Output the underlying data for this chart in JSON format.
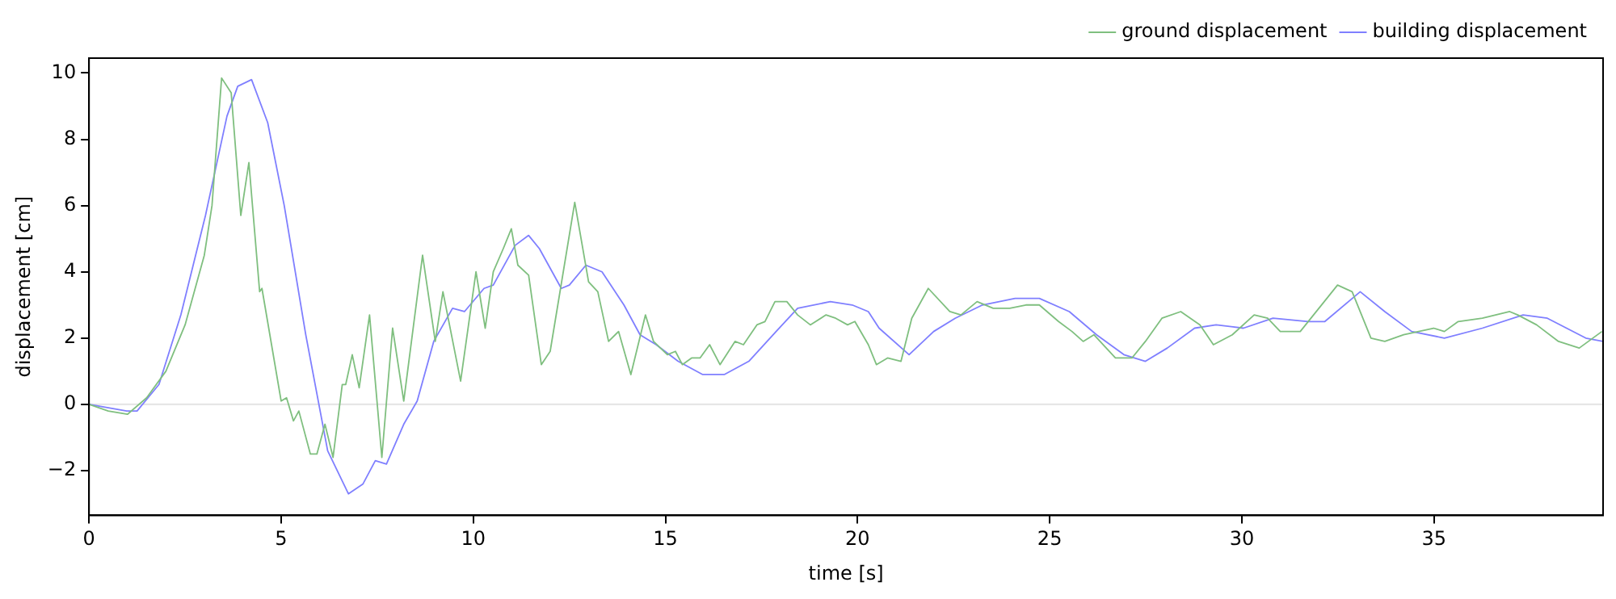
{
  "chart_data": {
    "type": "line",
    "xlabel": "time [s]",
    "ylabel": "displacement [cm]",
    "xlim": [
      0,
      39.4
    ],
    "ylim": [
      -3.35,
      10.45
    ],
    "xticks": [
      0,
      5,
      10,
      15,
      20,
      25,
      30,
      35
    ],
    "yticks": [
      {
        "value": -2,
        "label": "−2"
      },
      0,
      2,
      4,
      6,
      8,
      10
    ],
    "grid": false,
    "legend": "top right",
    "ref_lines": [
      {
        "axis": "y",
        "value": 0,
        "color": "#e6e6e6"
      }
    ],
    "series": [
      {
        "name": "ground displacement",
        "color": "#7fbf7f",
        "x": [
          0,
          0.5,
          1.0,
          1.5,
          2.0,
          2.5,
          3.0,
          3.2,
          3.45,
          3.7,
          3.95,
          4.16,
          4.44,
          4.5,
          5.0,
          5.14,
          5.32,
          5.46,
          5.76,
          5.93,
          6.14,
          6.35,
          6.59,
          6.68,
          6.85,
          7.03,
          7.3,
          7.62,
          7.9,
          8.19,
          8.68,
          9.01,
          9.21,
          9.67,
          10.07,
          10.31,
          10.52,
          10.78,
          10.99,
          11.16,
          11.44,
          11.77,
          12.0,
          12.64,
          13.0,
          13.24,
          13.52,
          13.78,
          14.1,
          14.48,
          14.69,
          15.05,
          15.26,
          15.44,
          15.68,
          15.9,
          16.15,
          16.42,
          16.81,
          17.03,
          17.38,
          17.59,
          17.85,
          18.16,
          18.44,
          18.77,
          19.18,
          19.43,
          19.74,
          19.93,
          20.28,
          20.49,
          20.78,
          21.13,
          21.41,
          21.84,
          22.4,
          22.69,
          23.11,
          23.53,
          23.96,
          24.38,
          24.73,
          25.23,
          25.58,
          25.87,
          26.15,
          26.71,
          27.14,
          27.49,
          27.92,
          28.41,
          28.91,
          29.26,
          29.75,
          30.32,
          30.67,
          31.0,
          31.52,
          32.49,
          32.87,
          33.36,
          33.72,
          34.21,
          34.99,
          35.27,
          35.63,
          36.26,
          36.97,
          37.18,
          37.67,
          38.24,
          38.78,
          39.37
        ],
        "values": [
          0,
          -0.2,
          -0.3,
          0.2,
          1.0,
          2.4,
          4.5,
          6.0,
          9.85,
          9.4,
          5.7,
          7.3,
          3.4,
          3.5,
          0.1,
          0.2,
          -0.5,
          -0.2,
          -1.5,
          -1.5,
          -0.6,
          -1.6,
          0.6,
          0.6,
          1.5,
          0.5,
          2.7,
          -1.6,
          2.3,
          0.1,
          4.5,
          1.9,
          3.4,
          0.7,
          4.0,
          2.3,
          4.0,
          4.7,
          5.3,
          4.2,
          3.9,
          1.2,
          1.6,
          6.1,
          3.7,
          3.4,
          1.9,
          2.2,
          0.9,
          2.7,
          1.9,
          1.5,
          1.6,
          1.2,
          1.4,
          1.4,
          1.8,
          1.2,
          1.9,
          1.8,
          2.4,
          2.5,
          3.1,
          3.1,
          2.7,
          2.4,
          2.7,
          2.6,
          2.4,
          2.5,
          1.8,
          1.2,
          1.4,
          1.3,
          2.6,
          3.5,
          2.8,
          2.7,
          3.1,
          2.9,
          2.9,
          3.0,
          3.0,
          2.5,
          2.2,
          1.9,
          2.1,
          1.4,
          1.4,
          1.9,
          2.6,
          2.8,
          2.4,
          1.8,
          2.1,
          2.7,
          2.6,
          2.2,
          2.2,
          3.6,
          3.4,
          2.0,
          1.9,
          2.1,
          2.3,
          2.2,
          2.5,
          2.6,
          2.8,
          2.7,
          2.4,
          1.9,
          1.7,
          2.2
        ]
      },
      {
        "name": "building displacement",
        "color": "#7f7fff",
        "x": [
          0,
          0.98,
          1.25,
          1.82,
          2.39,
          3.03,
          3.59,
          3.87,
          4.23,
          4.65,
          5.08,
          5.64,
          6.21,
          6.75,
          7.13,
          7.45,
          7.74,
          8.19,
          8.54,
          8.97,
          9.46,
          9.77,
          10.28,
          10.52,
          11.09,
          11.44,
          11.72,
          12.29,
          12.5,
          12.93,
          13.35,
          13.92,
          14.34,
          14.76,
          15.33,
          15.97,
          16.53,
          17.17,
          17.88,
          18.44,
          19.29,
          19.86,
          20.28,
          20.56,
          21.34,
          21.98,
          22.54,
          23.25,
          24.1,
          24.73,
          25.51,
          26.22,
          26.93,
          27.49,
          28.06,
          28.77,
          29.33,
          30.04,
          30.81,
          31.73,
          32.16,
          33.08,
          33.72,
          34.42,
          35.27,
          36.26,
          37.32,
          37.95,
          38.95,
          39.4
        ],
        "values": [
          0,
          -0.2,
          -0.2,
          0.6,
          2.7,
          5.7,
          8.7,
          9.6,
          9.8,
          8.5,
          6.0,
          2.1,
          -1.4,
          -2.7,
          -2.4,
          -1.7,
          -1.8,
          -0.6,
          0.1,
          1.9,
          2.9,
          2.8,
          3.5,
          3.6,
          4.8,
          5.1,
          4.7,
          3.5,
          3.6,
          4.2,
          4.0,
          3.0,
          2.1,
          1.8,
          1.3,
          0.9,
          0.9,
          1.3,
          2.2,
          2.9,
          3.1,
          3.0,
          2.8,
          2.3,
          1.5,
          2.2,
          2.6,
          3.0,
          3.2,
          3.2,
          2.8,
          2.1,
          1.5,
          1.3,
          1.7,
          2.3,
          2.4,
          2.3,
          2.6,
          2.5,
          2.5,
          3.4,
          2.8,
          2.2,
          2.0,
          2.3,
          2.7,
          2.6,
          2.0,
          1.9
        ]
      }
    ]
  }
}
